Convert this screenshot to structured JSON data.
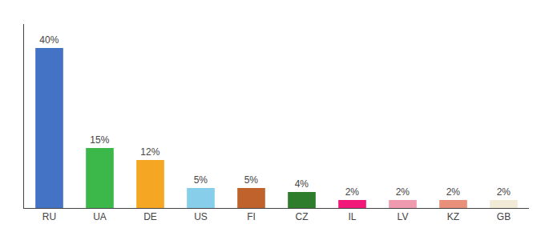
{
  "chart_data": {
    "type": "bar",
    "categories": [
      "RU",
      "UA",
      "DE",
      "US",
      "FI",
      "CZ",
      "IL",
      "LV",
      "KZ",
      "GB"
    ],
    "values": [
      40,
      15,
      12,
      5,
      5,
      4,
      2,
      2,
      2,
      2
    ],
    "value_labels": [
      "40%",
      "15%",
      "12%",
      "5%",
      "5%",
      "4%",
      "2%",
      "2%",
      "2%",
      "2%"
    ],
    "data_labels": true,
    "colors": [
      "#4472c4",
      "#3cb84a",
      "#f5a623",
      "#87ceeb",
      "#c0622b",
      "#2d7d2d",
      "#f0197a",
      "#f09ab0",
      "#e8907a",
      "#f0ead6"
    ],
    "ylim": [
      0,
      46
    ],
    "grid": false,
    "tick_labels": "x"
  }
}
